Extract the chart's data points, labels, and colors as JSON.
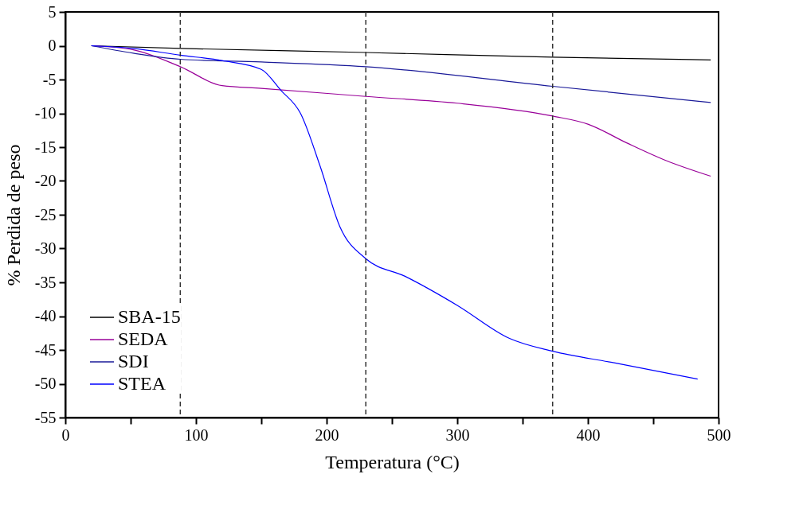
{
  "chart_data": {
    "type": "line",
    "xlabel": "Temperatura (°C)",
    "ylabel": "% Perdida de peso",
    "xlim": [
      0,
      500
    ],
    "ylim": [
      -55,
      5
    ],
    "xticks": [
      0,
      {
        "value": 50,
        "label": null
      },
      100,
      {
        "value": 150,
        "label": null
      },
      200,
      {
        "value": 250,
        "label": null
      },
      300,
      {
        "value": 350,
        "label": null
      },
      400,
      {
        "value": 450,
        "label": null
      },
      500
    ],
    "yticks": [
      5,
      0,
      -5,
      -10,
      -15,
      -20,
      -25,
      -30,
      -35,
      -40,
      -45,
      -50,
      -55
    ],
    "grid": false,
    "legend": "bottom left",
    "marker": "none",
    "line_style": "solid",
    "ref_lines": [
      {
        "axis": "x",
        "value": 88,
        "color": "#333333",
        "line_style": "dashed"
      },
      {
        "axis": "x",
        "value": 230,
        "color": "#333333",
        "line_style": "dashed"
      },
      {
        "axis": "x",
        "value": 373,
        "color": "#333333",
        "line_style": "dashed"
      }
    ],
    "series": [
      {
        "name": "SBA-15",
        "color": "#000000",
        "x": [
          20,
          88,
          230,
          373,
          494
        ],
        "values": [
          0,
          -0.4,
          -1.0,
          -1.7,
          -2.1
        ]
      },
      {
        "name": "SEDA",
        "color": "#990099",
        "x": [
          20,
          52,
          88,
          120,
          150,
          230,
          300,
          373,
          400,
          430,
          460,
          494
        ],
        "values": [
          0,
          -0.6,
          -3.1,
          -5.9,
          -6.3,
          -7.5,
          -8.5,
          -10.4,
          -11.6,
          -14.4,
          -17.0,
          -19.3
        ]
      },
      {
        "name": "SDI",
        "color": "#1a1a99",
        "x": [
          20,
          52,
          88,
          150,
          230,
          373,
          494
        ],
        "values": [
          0,
          -1.1,
          -2.0,
          -2.4,
          -3.1,
          -6.0,
          -8.4
        ]
      },
      {
        "name": "STEA",
        "color": "#0000ff",
        "x": [
          20,
          52,
          88,
          120,
          150,
          165,
          180,
          195,
          210,
          230,
          260,
          300,
          340,
          373,
          420,
          484
        ],
        "values": [
          0,
          -0.4,
          -1.4,
          -2.2,
          -3.5,
          -6.6,
          -10.0,
          -17.8,
          -26.7,
          -31.5,
          -34.1,
          -38.4,
          -43.3,
          -45.2,
          -46.9,
          -49.3
        ]
      }
    ]
  }
}
